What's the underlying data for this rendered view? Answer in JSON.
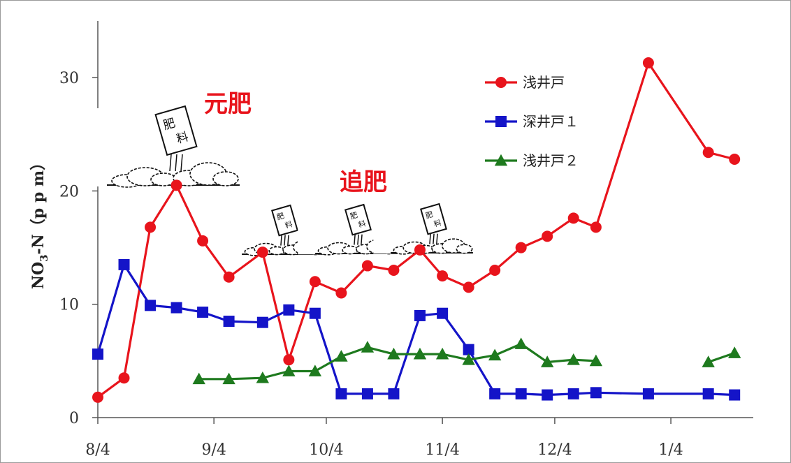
{
  "chart_data": {
    "type": "line",
    "ylabel_main": "NO",
    "ylabel_sub": "3",
    "ylabel_rest": "-N（p p m）",
    "ylim": [
      0,
      35
    ],
    "yticks": [
      "0",
      "10",
      "20",
      "30"
    ],
    "ytick_values": [
      0,
      10,
      20,
      30
    ],
    "xlim": [
      "2000-08-04",
      "2001-01-26"
    ],
    "xticks": [
      "8/4",
      "9/4",
      "10/4",
      "11/4",
      "12/4",
      "1/4"
    ],
    "xtick_dates": [
      "2000-08-04",
      "2000-09-04",
      "2000-10-04",
      "2000-11-04",
      "2000-12-04",
      "2001-01-04"
    ],
    "legend_position": "top-right",
    "series": [
      {
        "name": "浅井戸",
        "color": "#e8141c",
        "marker": "circle",
        "segments": [
          [
            [
              "2000-08-04",
              1.8
            ],
            [
              "2000-08-11",
              3.5
            ],
            [
              "2000-08-18",
              16.8
            ],
            [
              "2000-08-25",
              20.5
            ],
            [
              "2000-09-01",
              15.6
            ],
            [
              "2000-09-08",
              12.4
            ],
            [
              "2000-09-17",
              14.6
            ],
            [
              "2000-09-24",
              5.1
            ],
            [
              "2000-10-01",
              12.0
            ],
            [
              "2000-10-08",
              11.0
            ],
            [
              "2000-10-15",
              13.4
            ],
            [
              "2000-10-22",
              13.0
            ],
            [
              "2000-10-29",
              14.8
            ],
            [
              "2000-11-04",
              12.5
            ],
            [
              "2000-11-11",
              11.5
            ],
            [
              "2000-11-18",
              13.0
            ],
            [
              "2000-11-25",
              15.0
            ],
            [
              "2000-12-02",
              16.0
            ],
            [
              "2000-12-09",
              17.6
            ],
            [
              "2000-12-15",
              16.8
            ],
            [
              "2000-12-29",
              31.3
            ],
            [
              "2001-01-14",
              23.4
            ],
            [
              "2001-01-21",
              22.8
            ]
          ]
        ]
      },
      {
        "name": "深井戸１",
        "color": "#1414c8",
        "marker": "square",
        "segments": [
          [
            [
              "2000-08-04",
              5.6
            ],
            [
              "2000-08-11",
              13.5
            ],
            [
              "2000-08-18",
              9.9
            ],
            [
              "2000-08-25",
              9.7
            ],
            [
              "2000-09-01",
              9.3
            ],
            [
              "2000-09-08",
              8.5
            ],
            [
              "2000-09-17",
              8.4
            ],
            [
              "2000-09-24",
              9.5
            ],
            [
              "2000-10-01",
              9.2
            ],
            [
              "2000-10-08",
              2.1
            ],
            [
              "2000-10-15",
              2.1
            ],
            [
              "2000-10-22",
              2.1
            ],
            [
              "2000-10-29",
              9.0
            ],
            [
              "2000-11-04",
              9.2
            ],
            [
              "2000-11-11",
              6.0
            ],
            [
              "2000-11-18",
              2.1
            ],
            [
              "2000-11-25",
              2.1
            ],
            [
              "2000-12-02",
              2.0
            ],
            [
              "2000-12-09",
              2.1
            ],
            [
              "2000-12-15",
              2.2
            ],
            [
              "2000-12-29",
              2.1
            ],
            [
              "2001-01-14",
              2.1
            ],
            [
              "2001-01-21",
              2.0
            ]
          ]
        ]
      },
      {
        "name": "浅井戸２",
        "color": "#1e7a1e",
        "marker": "triangle",
        "segments": [
          [
            [
              "2000-08-31",
              3.4
            ],
            [
              "2000-09-08",
              3.4
            ],
            [
              "2000-09-17",
              3.5
            ],
            [
              "2000-09-24",
              4.1
            ],
            [
              "2000-10-01",
              4.1
            ],
            [
              "2000-10-08",
              5.4
            ],
            [
              "2000-10-15",
              6.2
            ],
            [
              "2000-10-22",
              5.6
            ],
            [
              "2000-10-29",
              5.6
            ],
            [
              "2000-11-04",
              5.6
            ],
            [
              "2000-11-11",
              5.1
            ],
            [
              "2000-11-18",
              5.5
            ],
            [
              "2000-11-25",
              6.5
            ],
            [
              "2000-12-02",
              4.9
            ],
            [
              "2000-12-09",
              5.1
            ],
            [
              "2000-12-15",
              5.0
            ]
          ],
          [
            [
              "2001-01-14",
              4.9
            ],
            [
              "2001-01-21",
              5.7
            ]
          ]
        ]
      }
    ],
    "annotations": [
      {
        "text": "元肥",
        "color": "#e8141c"
      },
      {
        "text": "追肥",
        "color": "#e8141c"
      }
    ],
    "bag_label_top": "肥",
    "bag_label_bottom": "料"
  }
}
